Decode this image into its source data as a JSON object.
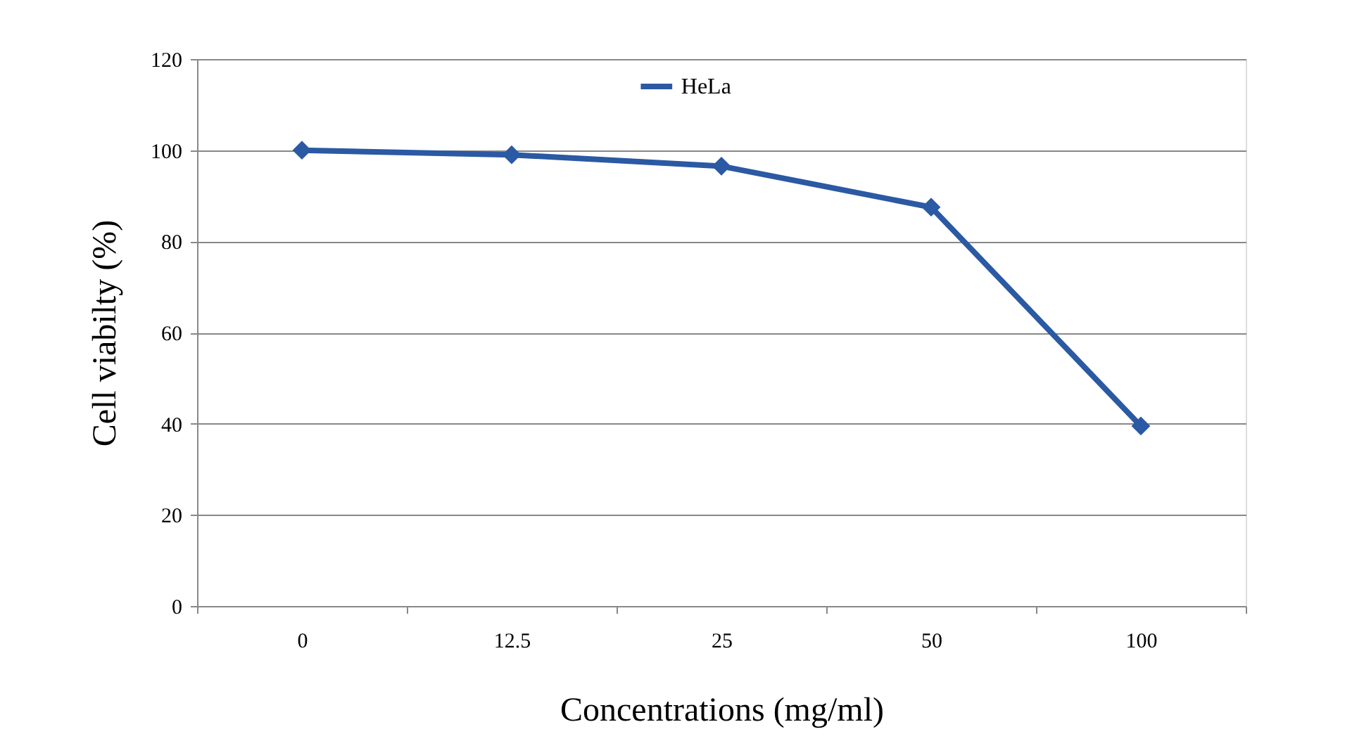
{
  "chart_data": {
    "type": "line",
    "xlabel": "Concentrations (mg/ml)",
    "ylabel": "Cell viabilty (%)",
    "categories": [
      "0",
      "12.5",
      "25",
      "50",
      "100"
    ],
    "series": [
      {
        "name": "HeLa",
        "color": "#2b59a3",
        "values": [
          100,
          99,
          96.5,
          87.5,
          39.5
        ]
      }
    ],
    "ylim": [
      0,
      120
    ],
    "yticks": [
      0,
      20,
      40,
      60,
      80,
      100,
      120
    ],
    "grid": "y",
    "legend": "top",
    "marker": "diamond",
    "line_style": "solid"
  }
}
